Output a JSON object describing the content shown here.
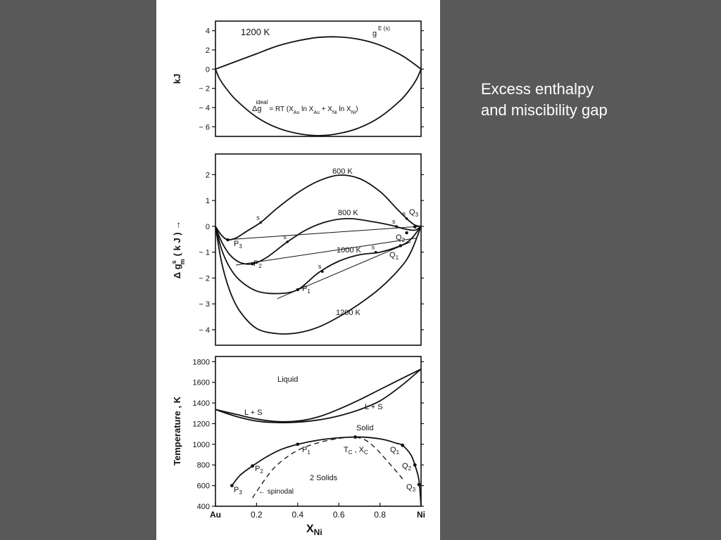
{
  "slide": {
    "caption_line1": "Excess enthalpy",
    "caption_line2": "and miscibility gap",
    "background": "#595959",
    "figure_background": "#ffffff",
    "ink": "#111111"
  },
  "chart_data": [
    {
      "type": "line",
      "panel": "top",
      "ylabel": "kJ",
      "ylim": [
        -7,
        5
      ],
      "xlim": [
        0,
        1
      ],
      "yticks": [
        4,
        2,
        0,
        -2,
        -4,
        -6
      ],
      "ytick_labels": [
        "4",
        "2",
        "0",
        "− 2",
        "− 4",
        "− 6"
      ],
      "annotations": {
        "temperature": "1200 K",
        "gE_label": "g",
        "gE_sup": "E (s)",
        "ideal_label": "Δg",
        "ideal_sup": "ideal",
        "ideal_formula": "= RT (X",
        "ideal_f1": "Au",
        "ideal_f2": " ln X",
        "ideal_f3": "Au",
        "ideal_f4": " + X",
        "ideal_f5": "Ni",
        "ideal_f6": " ln X",
        "ideal_f7": "Ni",
        "ideal_f8": ")"
      },
      "series": [
        {
          "key": "gE",
          "x": [
            0,
            0.05,
            0.1,
            0.2,
            0.3,
            0.4,
            0.5,
            0.6,
            0.7,
            0.8,
            0.9,
            0.95,
            1
          ],
          "y": [
            0,
            0.4,
            0.8,
            1.6,
            2.4,
            2.95,
            3.3,
            3.35,
            3.1,
            2.5,
            1.5,
            0.8,
            0
          ]
        },
        {
          "key": "g_ideal",
          "x": [
            0,
            0.02,
            0.05,
            0.1,
            0.2,
            0.3,
            0.4,
            0.5,
            0.6,
            0.7,
            0.8,
            0.9,
            0.95,
            0.98,
            1
          ],
          "y": [
            0,
            -1.0,
            -1.95,
            -3.2,
            -4.99,
            -6.1,
            -6.7,
            -6.92,
            -6.7,
            -6.1,
            -4.99,
            -3.24,
            -1.98,
            -0.98,
            0
          ]
        }
      ]
    },
    {
      "type": "line",
      "panel": "middle",
      "ylabel": "Δ g",
      "ylabel_sup": "s",
      "ylabel_sub": "m",
      "ylabel_tail": "( k J )  →",
      "ylim": [
        -4.6,
        2.8
      ],
      "xlim": [
        0,
        1
      ],
      "yticks": [
        2,
        1,
        0,
        -1,
        -2,
        -3,
        -4
      ],
      "ytick_labels": [
        "2",
        "1",
        "0",
        "− 1",
        "− 2",
        "− 3",
        "− 4"
      ],
      "curve_labels": [
        "600 K",
        "800 K",
        "1000 K",
        "1200 K"
      ],
      "point_labels": [
        "P",
        "P",
        "P",
        "Q",
        "Q",
        "Q"
      ],
      "point_subs": [
        "3",
        "2",
        "1",
        "3",
        "2",
        "1"
      ],
      "spinodal_mark": "s",
      "series": [
        {
          "key": "600K",
          "x": [
            0,
            0.03,
            0.06,
            0.1,
            0.15,
            0.22,
            0.3,
            0.4,
            0.5,
            0.6,
            0.7,
            0.8,
            0.88,
            0.93,
            0.97,
            1
          ],
          "y": [
            0,
            -0.35,
            -0.52,
            -0.45,
            -0.2,
            0.15,
            0.7,
            1.3,
            1.75,
            1.98,
            1.85,
            1.35,
            0.7,
            0.3,
            0.05,
            0
          ]
        },
        {
          "key": "800K",
          "x": [
            0,
            0.03,
            0.07,
            0.12,
            0.18,
            0.25,
            0.35,
            0.45,
            0.55,
            0.65,
            0.75,
            0.85,
            0.92,
            0.97,
            1
          ],
          "y": [
            0,
            -0.6,
            -1.1,
            -1.4,
            -1.45,
            -1.2,
            -0.6,
            -0.1,
            0.2,
            0.3,
            0.2,
            0.05,
            -0.1,
            -0.15,
            0
          ]
        },
        {
          "key": "1000K",
          "x": [
            0,
            0.03,
            0.07,
            0.12,
            0.2,
            0.3,
            0.4,
            0.5,
            0.6,
            0.7,
            0.8,
            0.9,
            0.95,
            1
          ],
          "y": [
            0,
            -0.9,
            -1.6,
            -2.1,
            -2.5,
            -2.6,
            -2.45,
            -1.8,
            -1.35,
            -1.1,
            -1.0,
            -0.75,
            -0.5,
            0
          ]
        },
        {
          "key": "1200K",
          "x": [
            0,
            0.03,
            0.07,
            0.12,
            0.2,
            0.3,
            0.4,
            0.5,
            0.6,
            0.7,
            0.8,
            0.9,
            0.95,
            1
          ],
          "y": [
            0,
            -1.4,
            -2.5,
            -3.3,
            -3.95,
            -4.15,
            -4.12,
            -3.9,
            -3.5,
            -3.0,
            -2.4,
            -1.6,
            -1.0,
            0
          ]
        }
      ],
      "tangents": [
        {
          "x": [
            0.05,
            1.0
          ],
          "y": [
            -0.52,
            0.0
          ]
        },
        {
          "x": [
            0.1,
            0.98
          ],
          "y": [
            -1.5,
            -0.45
          ]
        },
        {
          "x": [
            0.3,
            0.95
          ],
          "y": [
            -2.8,
            -0.6
          ]
        }
      ],
      "points": [
        {
          "x": 0.06,
          "y": -0.52
        },
        {
          "x": 0.18,
          "y": -1.45
        },
        {
          "x": 0.4,
          "y": -2.45
        },
        {
          "x": 0.97,
          "y": -0.02
        },
        {
          "x": 0.93,
          "y": -0.25
        },
        {
          "x": 0.9,
          "y": -0.75
        }
      ],
      "spinodal_points": [
        {
          "x": 0.22,
          "y": 0.15
        },
        {
          "x": 0.35,
          "y": -0.6
        },
        {
          "x": 0.52,
          "y": -1.75
        },
        {
          "x": 0.78,
          "y": -1.0
        },
        {
          "x": 0.88,
          "y": 0.0
        },
        {
          "x": 0.93,
          "y": 0.3
        }
      ]
    },
    {
      "type": "line",
      "panel": "bottom",
      "ylabel": "Temperature , K",
      "xlabel": "X",
      "xlabel_sub": "Ni",
      "ylim": [
        400,
        1850
      ],
      "xlim": [
        0,
        1
      ],
      "yticks": [
        1800,
        1600,
        1400,
        1200,
        1000,
        800,
        600,
        400
      ],
      "ytick_labels": [
        "1800",
        "1600",
        "1400",
        "1200",
        "1000",
        "800",
        "600",
        "400"
      ],
      "xticks": [
        0,
        0.2,
        0.4,
        0.6,
        0.8,
        1
      ],
      "xtick_labels": [
        "Au",
        "0.2",
        "0.4",
        "0.6",
        "0.8",
        "Ni"
      ],
      "region_labels": [
        "Liquid",
        "L + S",
        "L + S",
        "Solid",
        "2  Solids",
        "← spinodal"
      ],
      "point_labels": [
        "P",
        "P",
        "P",
        "Q",
        "Q",
        "Q"
      ],
      "point_subs": [
        "3",
        "2",
        "1",
        "1",
        "2",
        "3"
      ],
      "critical_label": "T",
      "critical_sub1": "C",
      "critical_mid": " , X",
      "critical_sub2": "C",
      "series": [
        {
          "key": "liquidus",
          "x": [
            0,
            0.1,
            0.2,
            0.3,
            0.4,
            0.5,
            0.6,
            0.7,
            0.8,
            0.9,
            1
          ],
          "y": [
            1337,
            1290,
            1245,
            1220,
            1225,
            1265,
            1340,
            1430,
            1530,
            1630,
            1728
          ]
        },
        {
          "key": "solidus",
          "x": [
            0,
            0.1,
            0.2,
            0.3,
            0.4,
            0.5,
            0.6,
            0.7,
            0.8,
            0.9,
            1
          ],
          "y": [
            1337,
            1270,
            1225,
            1210,
            1215,
            1235,
            1275,
            1335,
            1420,
            1560,
            1728
          ]
        },
        {
          "key": "miscibility_gap",
          "x": [
            0.08,
            0.12,
            0.18,
            0.25,
            0.32,
            0.4,
            0.5,
            0.6,
            0.68,
            0.75,
            0.82,
            0.88,
            0.91,
            0.95,
            0.97,
            0.99,
            1.0
          ],
          "y": [
            600,
            700,
            790,
            880,
            950,
            1000,
            1040,
            1063,
            1070,
            1065,
            1045,
            1010,
            990,
            900,
            800,
            650,
            400
          ]
        },
        {
          "key": "spinodal",
          "x": [
            0.18,
            0.22,
            0.28,
            0.35,
            0.42,
            0.5,
            0.58,
            0.65,
            0.68,
            0.73,
            0.78,
            0.83,
            0.87,
            0.9,
            0.92
          ],
          "y": [
            480,
            600,
            760,
            880,
            960,
            1015,
            1050,
            1068,
            1070,
            1040,
            960,
            850,
            760,
            690,
            640
          ]
        }
      ],
      "points": [
        {
          "x": 0.08,
          "y": 600
        },
        {
          "x": 0.18,
          "y": 790
        },
        {
          "x": 0.4,
          "y": 1000
        },
        {
          "x": 0.91,
          "y": 990
        },
        {
          "x": 0.97,
          "y": 800
        },
        {
          "x": 0.99,
          "y": 610
        },
        {
          "x": 0.68,
          "y": 1070
        }
      ]
    }
  ]
}
